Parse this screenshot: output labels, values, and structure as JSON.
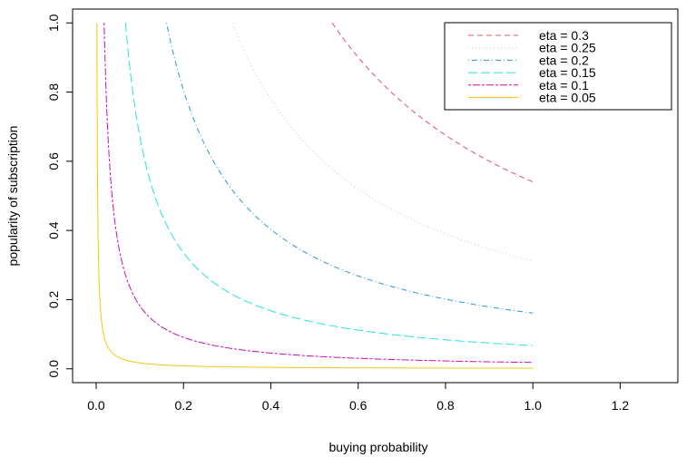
{
  "chart_data": {
    "type": "line",
    "title": "",
    "xlabel": "buying probability",
    "ylabel": "popularity of subscription",
    "xlim": [
      -0.054,
      1.332
    ],
    "ylim": [
      -0.04,
      1.04
    ],
    "xticks": [
      "0.0",
      "0.2",
      "0.4",
      "0.6",
      "0.8",
      "1.0",
      "1.2"
    ],
    "yticks": [
      "0.0",
      "0.2",
      "0.4",
      "0.6",
      "0.8",
      "1.0"
    ],
    "legend_position": "top-right",
    "series": [
      {
        "name": "eta = 0.3",
        "label": "eta = 0.3",
        "color": "#DF536B",
        "dash": "dashed",
        "formula": "y = 0.5404/x",
        "x_range": [
          0.5404,
          1.0
        ],
        "y_end": 0.5404
      },
      {
        "name": "eta = 0.25",
        "label": "eta = 0.25",
        "color": "#C8C8C8",
        "dash": "dotted",
        "formula": "y = 0.3119/x",
        "x_range": [
          0.3119,
          1.0
        ],
        "y_end": 0.3119
      },
      {
        "name": "eta = 0.2",
        "label": "eta = 0.2",
        "color": "#2297E6",
        "dash": "dotdash",
        "formula": "y = 0.1611/x",
        "x_range": [
          0.1611,
          1.0
        ],
        "y_end": 0.1611
      },
      {
        "name": "eta = 0.15",
        "label": "eta = 0.15",
        "color": "#28E2E5",
        "dash": "longdash",
        "formula": "y = 0.0671/x",
        "x_range": [
          0.0671,
          1.0
        ],
        "y_end": 0.0671
      },
      {
        "name": "eta = 0.1",
        "label": "eta = 0.1",
        "color": "#CD0BBC",
        "dash": "twodash",
        "formula": "y = 0.0182/x",
        "x_range": [
          0.0182,
          1.0
        ],
        "y_end": 0.0182
      },
      {
        "name": "eta = 0.05",
        "label": "eta = 0.05",
        "color": "#F5C710",
        "dash": "solid",
        "formula": "y = 0.0017/x",
        "x_range": [
          0.0017,
          1.0
        ],
        "y_end": 0.0017
      }
    ]
  }
}
